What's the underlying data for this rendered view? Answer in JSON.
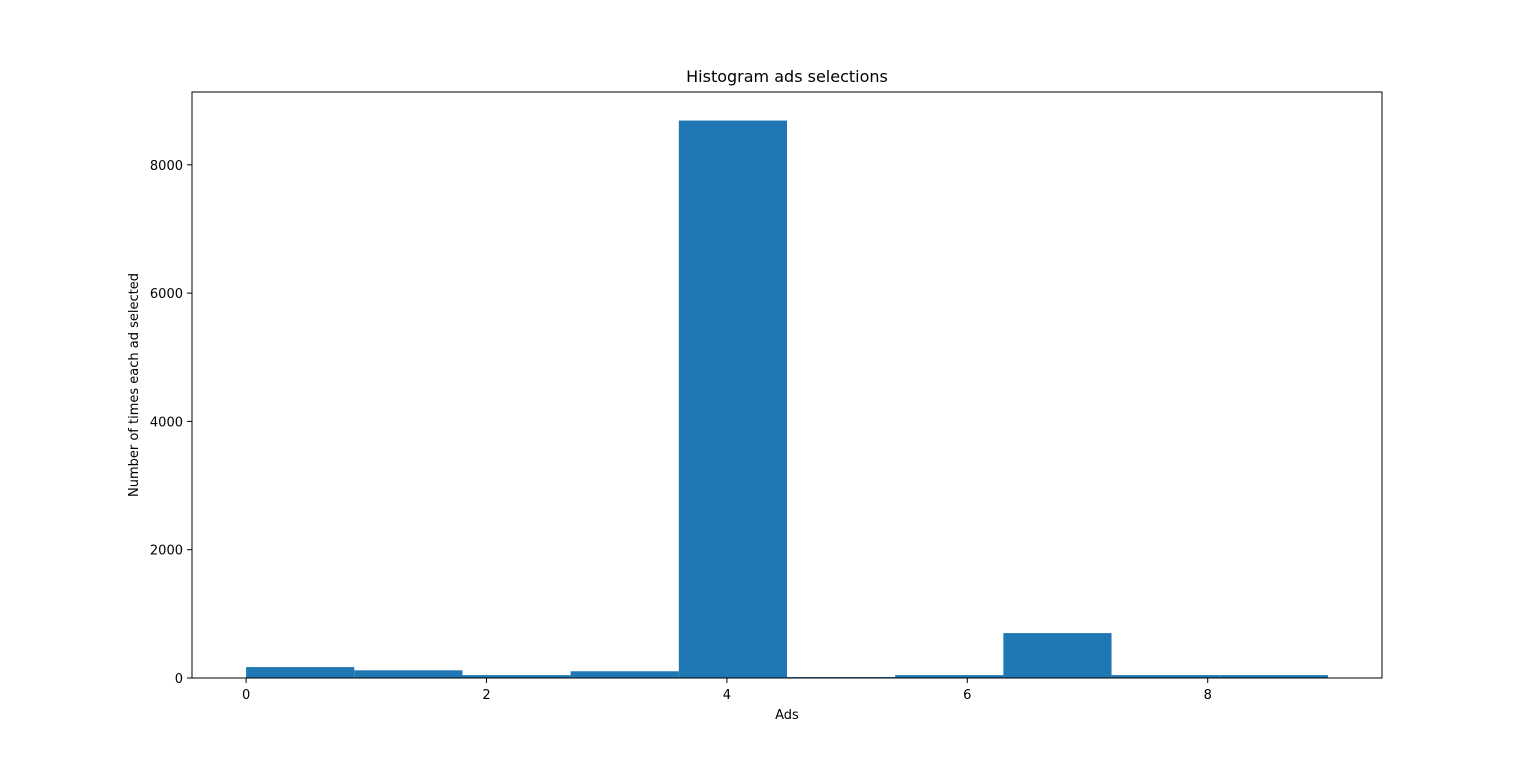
{
  "chart_data": {
    "type": "bar",
    "title": "Histogram ads selections",
    "xlabel": "Ads",
    "ylabel": "Number of times each ad selected",
    "xlim": [
      -0.45,
      9.45
    ],
    "ylim": [
      0,
      9135
    ],
    "xticks": [
      0,
      2,
      4,
      6,
      8
    ],
    "yticks": [
      0,
      2000,
      4000,
      6000,
      8000
    ],
    "bins": [
      {
        "start": 0.0,
        "end": 0.9,
        "value": 170
      },
      {
        "start": 0.9,
        "end": 1.8,
        "value": 120
      },
      {
        "start": 1.8,
        "end": 2.7,
        "value": 45
      },
      {
        "start": 2.7,
        "end": 3.6,
        "value": 105
      },
      {
        "start": 3.6,
        "end": 4.5,
        "value": 8690
      },
      {
        "start": 4.5,
        "end": 5.4,
        "value": 15
      },
      {
        "start": 5.4,
        "end": 6.3,
        "value": 45
      },
      {
        "start": 6.3,
        "end": 7.2,
        "value": 700
      },
      {
        "start": 7.2,
        "end": 8.1,
        "value": 45
      },
      {
        "start": 8.1,
        "end": 9.0,
        "value": 45
      }
    ],
    "bar_color": "#1f77b4",
    "grid": false,
    "legend": null
  }
}
